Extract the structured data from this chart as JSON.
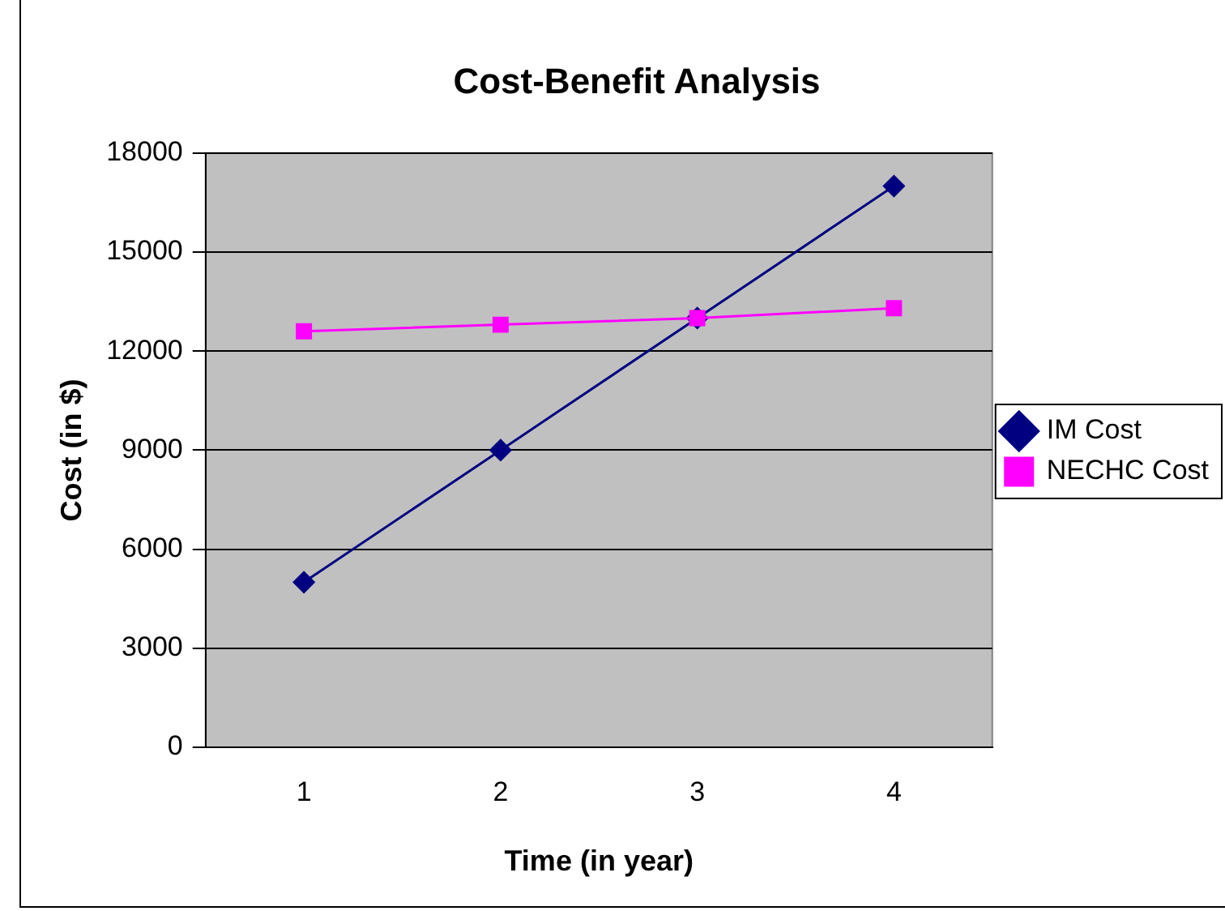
{
  "chart_data": {
    "type": "line",
    "title": "Cost-Benefit Analysis",
    "xlabel": "Time (in year)",
    "ylabel": "Cost (in $)",
    "categories": [
      "1",
      "2",
      "3",
      "4"
    ],
    "series": [
      {
        "name": "IM Cost",
        "color": "#000080",
        "marker": "diamond",
        "values": [
          5000,
          9000,
          13000,
          17000
        ]
      },
      {
        "name": "NECHC Cost",
        "color": "#ff00ff",
        "marker": "square",
        "values": [
          12600,
          12800,
          13000,
          13300
        ]
      }
    ],
    "ylim": [
      0,
      18000
    ],
    "yticks": [
      0,
      3000,
      6000,
      9000,
      12000,
      15000,
      18000
    ],
    "grid": "y",
    "legend": "right"
  }
}
